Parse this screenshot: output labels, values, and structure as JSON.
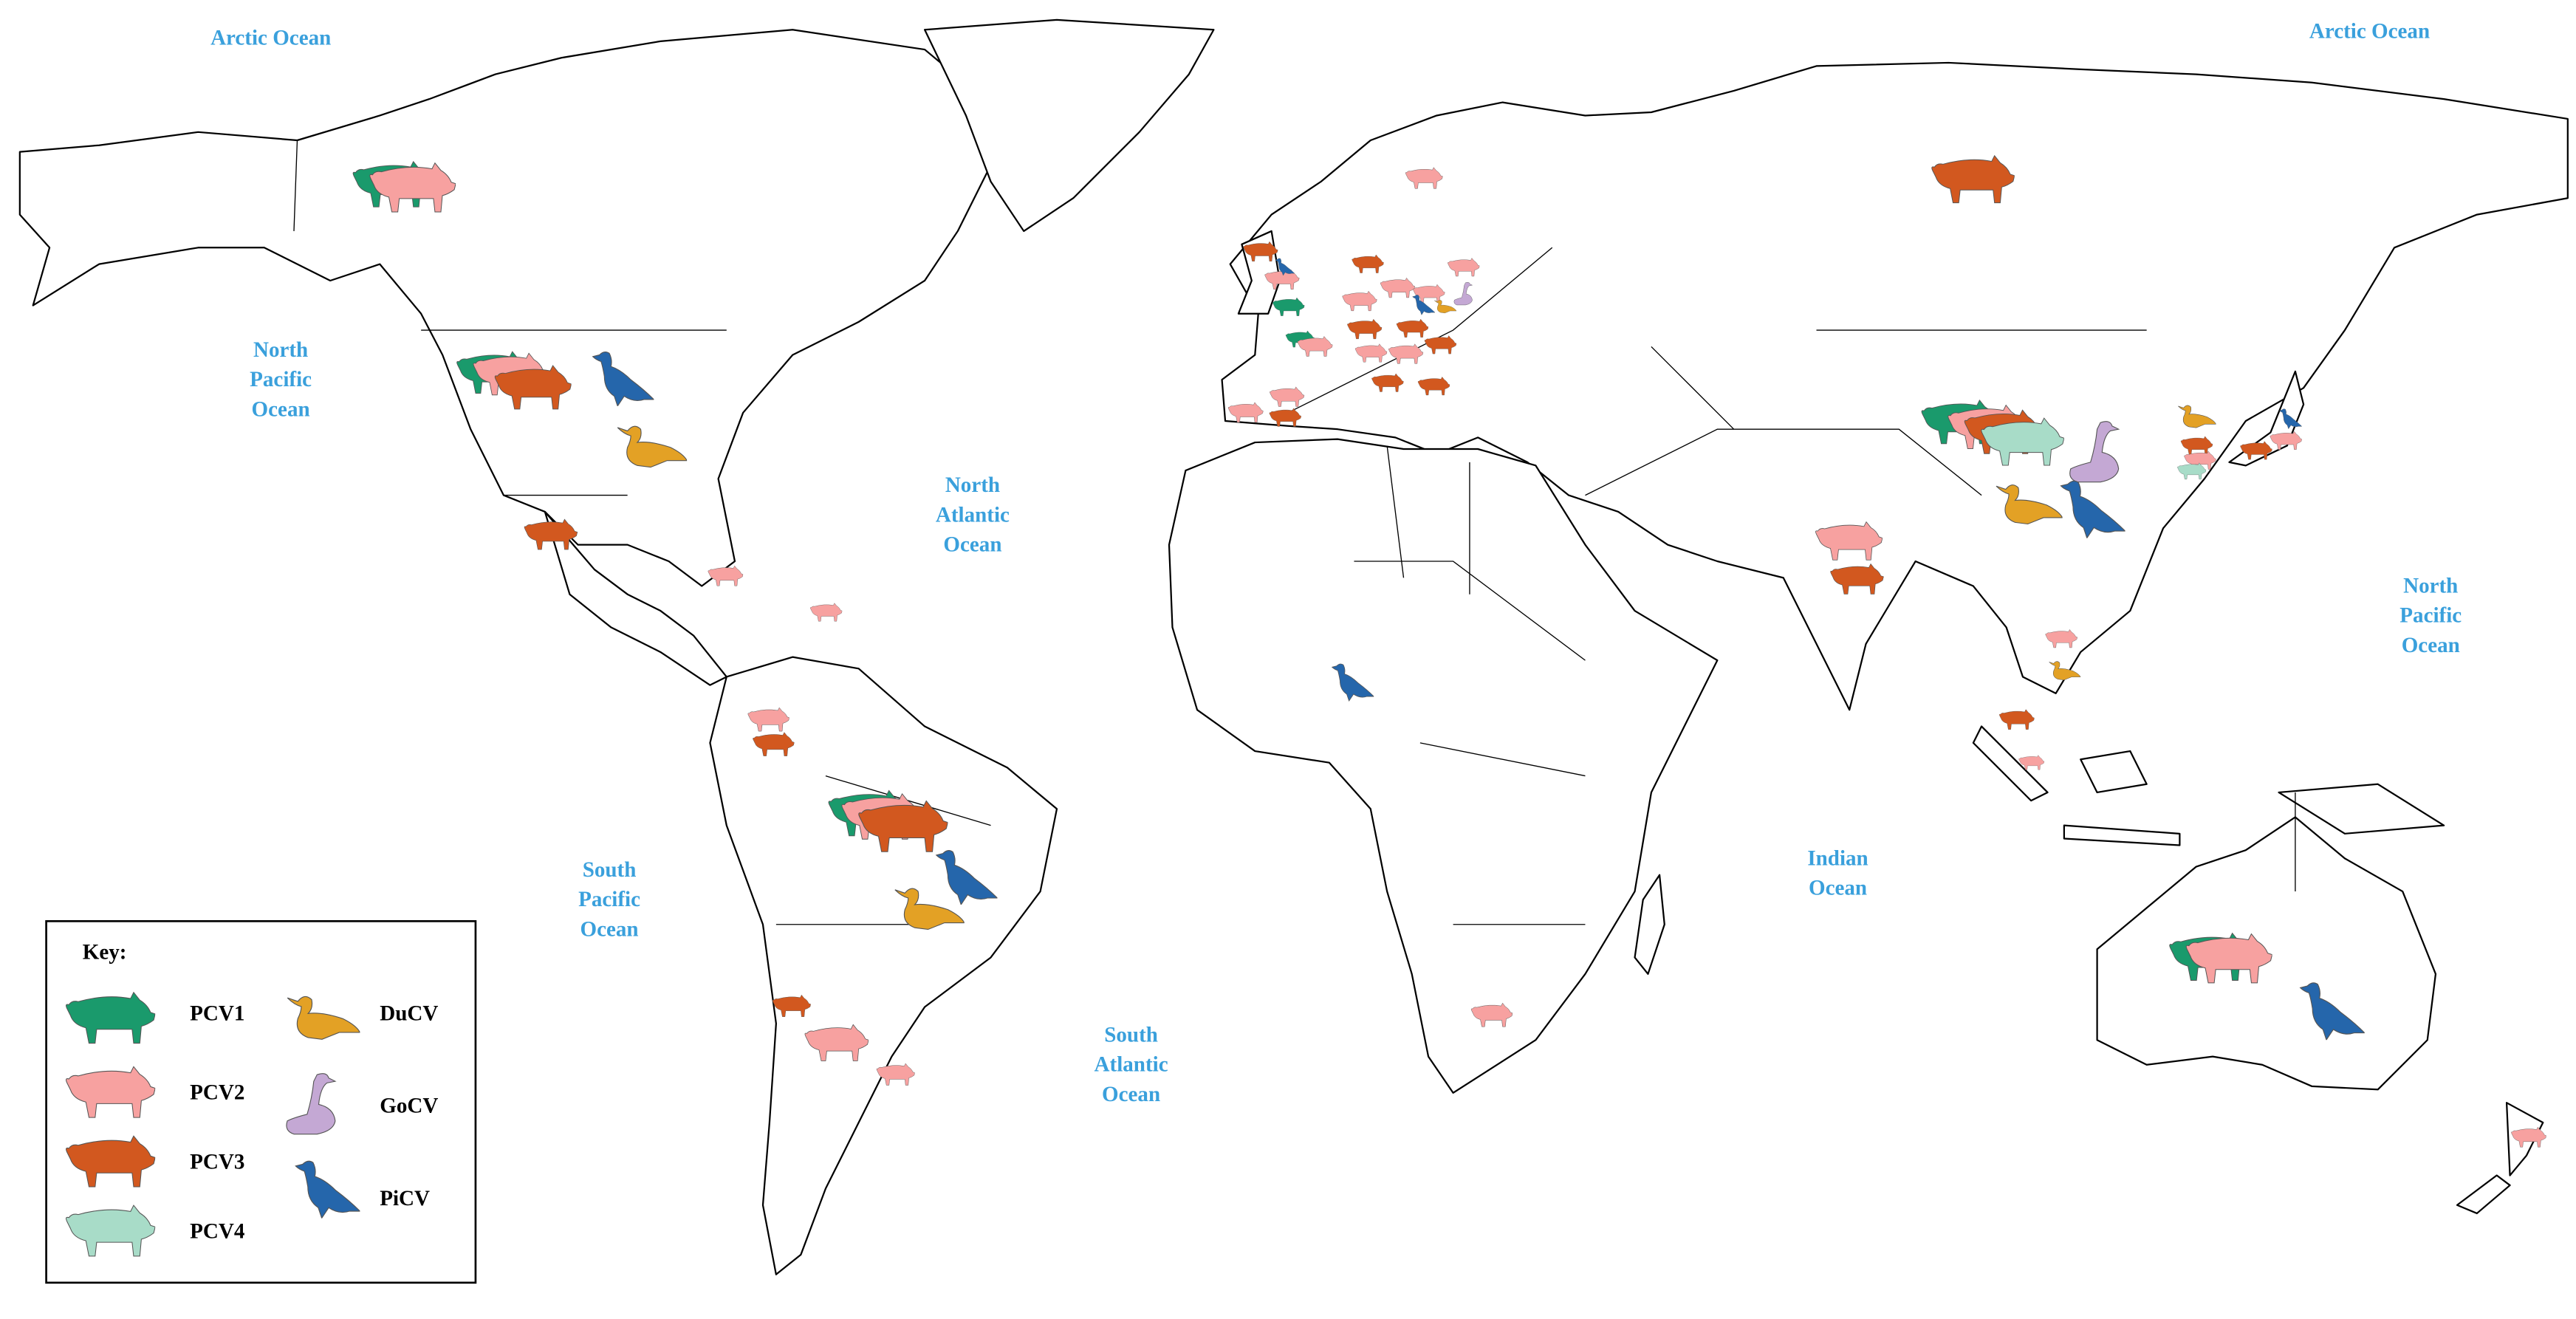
{
  "oceans": [
    {
      "lines": [
        "Arctic Ocean"
      ]
    },
    {
      "lines": [
        "Arctic Ocean"
      ]
    },
    {
      "lines": [
        "North",
        "Pacific",
        "Ocean"
      ]
    },
    {
      "lines": [
        "North",
        "Atlantic",
        "Ocean"
      ]
    },
    {
      "lines": [
        "South",
        "Pacific",
        "Ocean"
      ]
    },
    {
      "lines": [
        "South",
        "Atlantic",
        "Ocean"
      ]
    },
    {
      "lines": [
        "Indian",
        "Ocean"
      ]
    },
    {
      "lines": [
        "North",
        "Pacific",
        "Ocean"
      ]
    }
  ],
  "key": {
    "title": "Key:",
    "items": [
      "PCV1",
      "PCV2",
      "PCV3",
      "PCV4",
      "DuCV",
      "GoCV",
      "PiCV"
    ]
  }
}
